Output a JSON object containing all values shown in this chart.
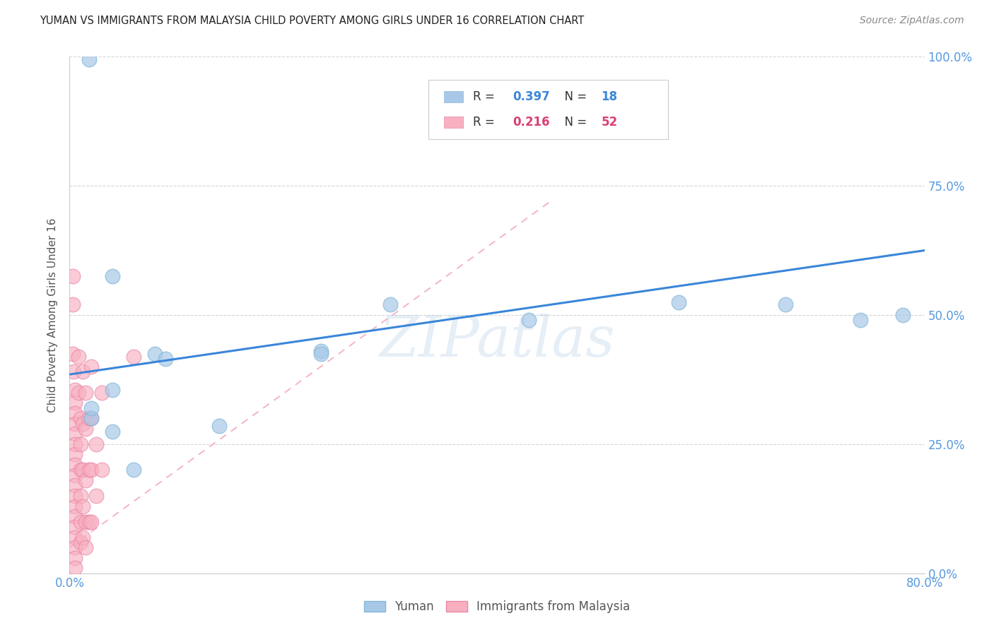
{
  "title": "YUMAN VS IMMIGRANTS FROM MALAYSIA CHILD POVERTY AMONG GIRLS UNDER 16 CORRELATION CHART",
  "source": "Source: ZipAtlas.com",
  "ylabel": "Child Poverty Among Girls Under 16",
  "xlim": [
    0.0,
    0.8
  ],
  "ylim": [
    0.0,
    1.0
  ],
  "xticks": [
    0.0,
    0.1,
    0.2,
    0.3,
    0.4,
    0.5,
    0.6,
    0.7,
    0.8
  ],
  "yticks": [
    0.0,
    0.25,
    0.5,
    0.75,
    1.0
  ],
  "yticklabels": [
    "0.0%",
    "25.0%",
    "50.0%",
    "75.0%",
    "100.0%"
  ],
  "watermark": "ZIPatlas",
  "legend_blue_r": "0.397",
  "legend_blue_n": "18",
  "legend_pink_r": "0.216",
  "legend_pink_n": "52",
  "legend_blue_label": "Yuman",
  "legend_pink_label": "Immigrants from Malaysia",
  "blue_color": "#a8c8e8",
  "pink_color": "#f8b0c0",
  "blue_line_color": "#3a86d9",
  "pink_line_color": "#f0a0b8",
  "blue_scatter": [
    [
      0.018,
      0.995
    ],
    [
      0.04,
      0.575
    ],
    [
      0.04,
      0.355
    ],
    [
      0.08,
      0.425
    ],
    [
      0.09,
      0.415
    ],
    [
      0.14,
      0.285
    ],
    [
      0.235,
      0.43
    ],
    [
      0.235,
      0.425
    ],
    [
      0.3,
      0.52
    ],
    [
      0.43,
      0.49
    ],
    [
      0.57,
      0.525
    ],
    [
      0.67,
      0.52
    ],
    [
      0.74,
      0.49
    ],
    [
      0.78,
      0.5
    ],
    [
      0.04,
      0.275
    ],
    [
      0.02,
      0.3
    ],
    [
      0.02,
      0.32
    ],
    [
      0.06,
      0.2
    ]
  ],
  "pink_scatter": [
    [
      0.003,
      0.575
    ],
    [
      0.003,
      0.425
    ],
    [
      0.004,
      0.39
    ],
    [
      0.005,
      0.355
    ],
    [
      0.005,
      0.33
    ],
    [
      0.005,
      0.31
    ],
    [
      0.005,
      0.29
    ],
    [
      0.005,
      0.27
    ],
    [
      0.005,
      0.25
    ],
    [
      0.005,
      0.23
    ],
    [
      0.005,
      0.21
    ],
    [
      0.005,
      0.19
    ],
    [
      0.005,
      0.17
    ],
    [
      0.005,
      0.15
    ],
    [
      0.005,
      0.13
    ],
    [
      0.005,
      0.11
    ],
    [
      0.005,
      0.09
    ],
    [
      0.005,
      0.07
    ],
    [
      0.005,
      0.05
    ],
    [
      0.005,
      0.03
    ],
    [
      0.005,
      0.01
    ],
    [
      0.008,
      0.42
    ],
    [
      0.008,
      0.35
    ],
    [
      0.01,
      0.3
    ],
    [
      0.01,
      0.25
    ],
    [
      0.01,
      0.2
    ],
    [
      0.01,
      0.15
    ],
    [
      0.01,
      0.1
    ],
    [
      0.01,
      0.06
    ],
    [
      0.012,
      0.39
    ],
    [
      0.012,
      0.29
    ],
    [
      0.012,
      0.2
    ],
    [
      0.012,
      0.13
    ],
    [
      0.012,
      0.07
    ],
    [
      0.015,
      0.35
    ],
    [
      0.015,
      0.28
    ],
    [
      0.015,
      0.18
    ],
    [
      0.015,
      0.1
    ],
    [
      0.015,
      0.05
    ],
    [
      0.018,
      0.3
    ],
    [
      0.018,
      0.2
    ],
    [
      0.018,
      0.1
    ],
    [
      0.02,
      0.4
    ],
    [
      0.02,
      0.3
    ],
    [
      0.02,
      0.2
    ],
    [
      0.02,
      0.1
    ],
    [
      0.025,
      0.25
    ],
    [
      0.025,
      0.15
    ],
    [
      0.03,
      0.35
    ],
    [
      0.03,
      0.2
    ],
    [
      0.06,
      0.42
    ],
    [
      0.003,
      0.52
    ]
  ],
  "blue_trendline_x": [
    0.0,
    0.8
  ],
  "blue_trendline_y": [
    0.385,
    0.625
  ],
  "pink_trendline_x": [
    0.0,
    0.45
  ],
  "pink_trendline_y": [
    0.05,
    0.72
  ]
}
